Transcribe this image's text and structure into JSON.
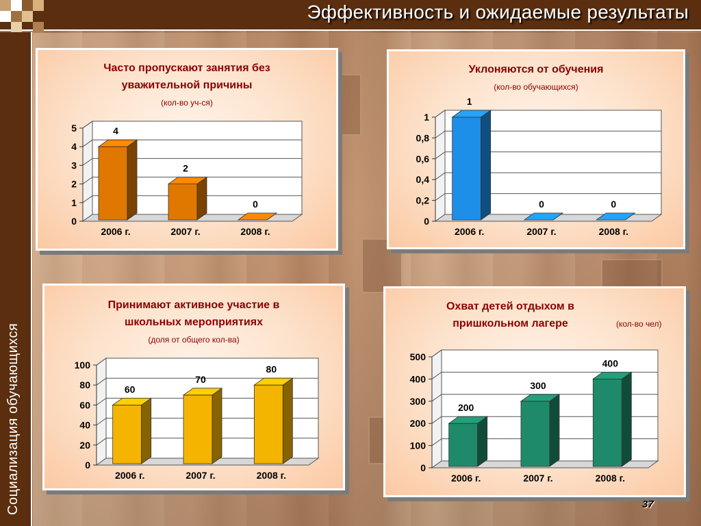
{
  "header": {
    "title": "Эффективность и ожидаемые результаты",
    "side_label": "Социализация обучающихся"
  },
  "page_number": "37",
  "colors": {
    "header_bg": "#5a2e0e",
    "title_red": "#8b0000",
    "orange_bar": "#e07800",
    "blue_bar": "#1e8fe8",
    "yellow_bar": "#f5b400",
    "teal_bar": "#1f8a6a"
  },
  "chart_data": [
    {
      "type": "bar",
      "title": "Часто пропускают занятия без уважительной причины",
      "subtitle": "(кол-во уч-ся)",
      "categories": [
        "2006 г.",
        "2007 г.",
        "2008 г."
      ],
      "values": [
        4,
        2,
        0
      ],
      "value_labels": [
        "4",
        "2",
        "0"
      ],
      "ylim": [
        0,
        5
      ],
      "yticks": [
        "0",
        "1",
        "2",
        "3",
        "4",
        "5"
      ],
      "grid": true,
      "bar_color": "#e07800"
    },
    {
      "type": "bar",
      "title": "Уклоняются от обучения",
      "subtitle": "(кол-во обучающихся)",
      "categories": [
        "2006 г.",
        "2007 г.",
        "2008 г."
      ],
      "values": [
        1,
        0,
        0
      ],
      "value_labels": [
        "1",
        "0",
        "0"
      ],
      "ylim": [
        0,
        1
      ],
      "yticks": [
        "0",
        "0,2",
        "0,4",
        "0,6",
        "0,8",
        "1"
      ],
      "grid": true,
      "bar_color": "#1e8fe8"
    },
    {
      "type": "bar",
      "title": "Принимают активное участие в школьных мероприятиях",
      "subtitle": "(доля от общего кол-ва)",
      "categories": [
        "2006 г.",
        "2007 г.",
        "2008 г."
      ],
      "values": [
        60,
        70,
        80
      ],
      "value_labels": [
        "60",
        "70",
        "80"
      ],
      "ylim": [
        0,
        100
      ],
      "yticks": [
        "0",
        "20",
        "40",
        "60",
        "80",
        "100"
      ],
      "grid": true,
      "bar_color": "#f5b400"
    },
    {
      "type": "bar",
      "title": "Охват детей отдыхом в пришкольном лагере",
      "subtitle": "(кол-во чел)",
      "categories": [
        "2006 г.",
        "2007 г.",
        "2008 г."
      ],
      "values": [
        200,
        300,
        400
      ],
      "value_labels": [
        "200",
        "300",
        "400"
      ],
      "ylim": [
        0,
        500
      ],
      "yticks": [
        "0",
        "100",
        "200",
        "300",
        "400",
        "500"
      ],
      "grid": true,
      "bar_color": "#1f8a6a"
    }
  ]
}
